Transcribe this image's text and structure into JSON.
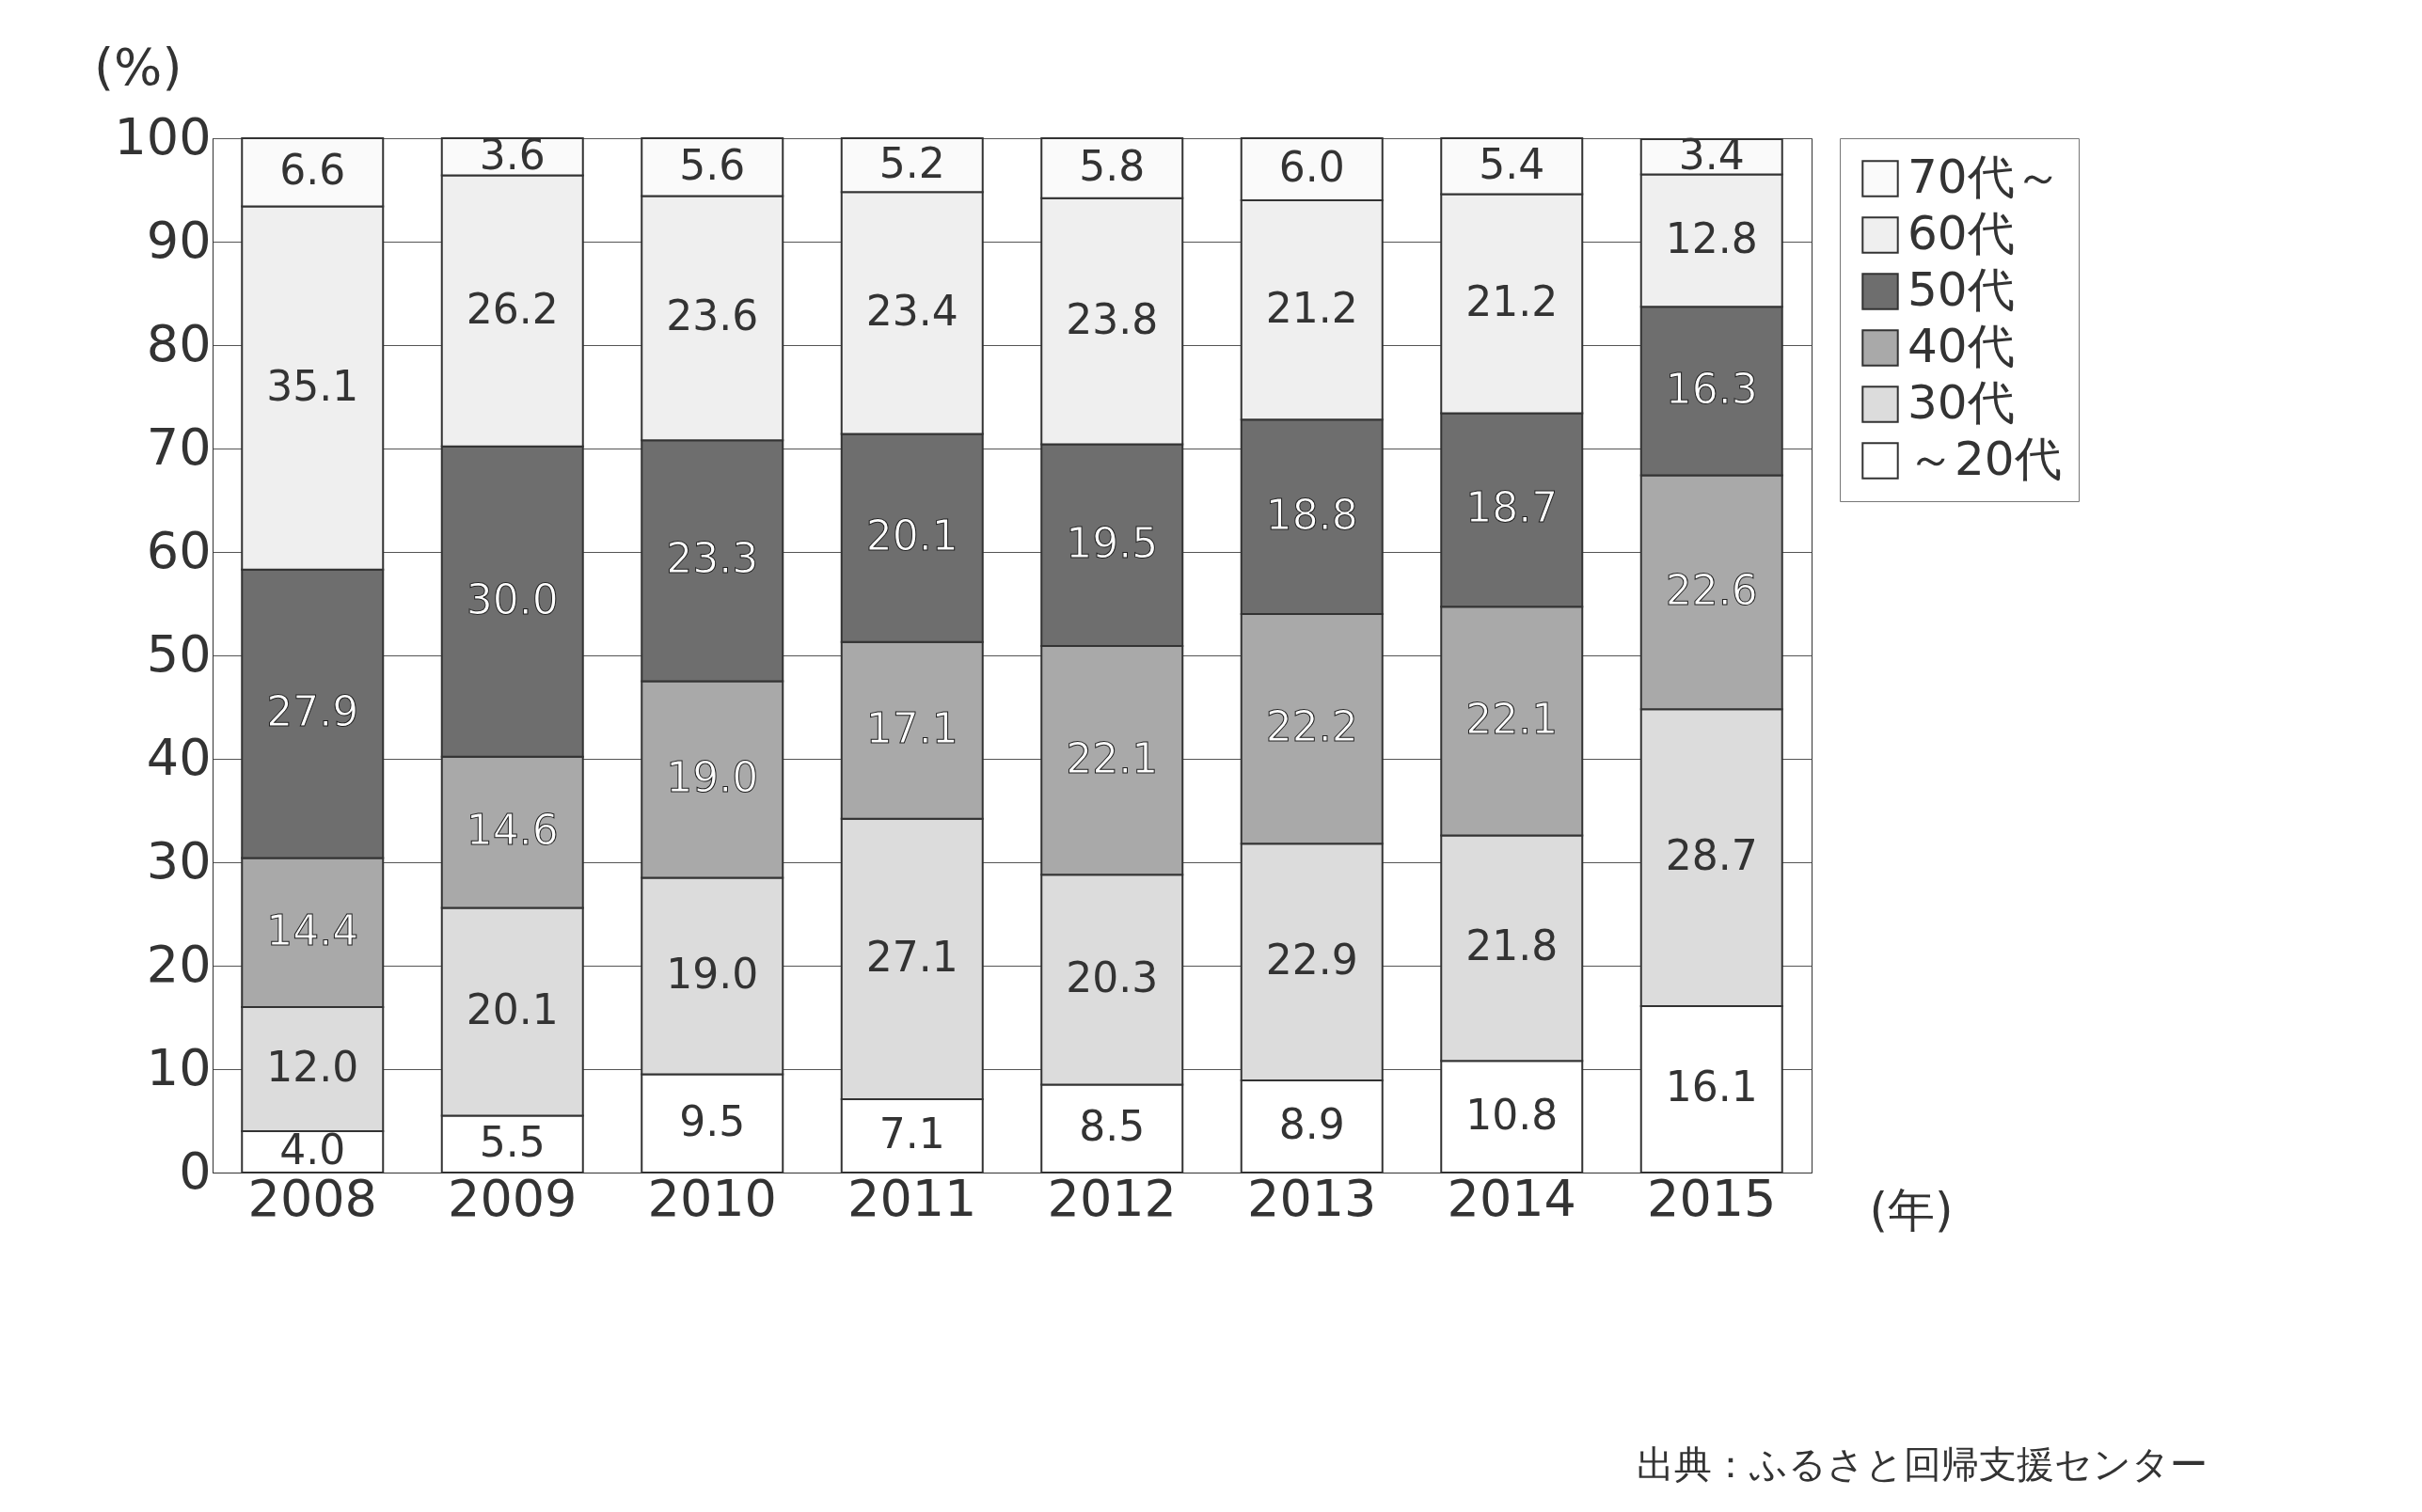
{
  "chart_data": {
    "type": "bar",
    "stacked": true,
    "ylabel": "(%)",
    "xlabel": "(年)",
    "categories": [
      "2008",
      "2009",
      "2010",
      "2011",
      "2012",
      "2013",
      "2014",
      "2015"
    ],
    "series": [
      {
        "name": "～20代",
        "color": "#ffffff",
        "values": [
          4.0,
          5.5,
          9.5,
          7.1,
          8.5,
          8.9,
          10.8,
          16.1
        ],
        "value_labels": [
          "4.0",
          "5.5",
          "9.5",
          "7.1",
          "8.5",
          "8.9",
          "10.8",
          "16.1"
        ]
      },
      {
        "name": "30代",
        "color": "#dcdcdc",
        "values": [
          12.0,
          20.1,
          19.0,
          27.1,
          20.3,
          22.9,
          21.8,
          28.7
        ],
        "value_labels": [
          "12.0",
          "20.1",
          "19.0",
          "27.1",
          "20.3",
          "22.9",
          "21.8",
          "28.7"
        ]
      },
      {
        "name": "40代",
        "color": "#a9a9a9",
        "values": [
          14.4,
          14.6,
          19.0,
          17.1,
          22.1,
          22.2,
          22.1,
          22.6
        ],
        "value_labels": [
          "14.4",
          "14.6",
          "19.0",
          "17.1",
          "22.1",
          "22.2",
          "22.1",
          "22.6"
        ]
      },
      {
        "name": "50代",
        "color": "#6e6e6e",
        "values": [
          27.9,
          30.0,
          23.3,
          20.1,
          19.5,
          18.8,
          18.7,
          16.3
        ],
        "value_labels": [
          "27.9",
          "30.0",
          "23.3",
          "20.1",
          "19.5",
          "18.8",
          "18.7",
          "16.3"
        ]
      },
      {
        "name": "60代",
        "color": "#efefef",
        "values": [
          35.1,
          26.2,
          23.6,
          23.4,
          23.8,
          21.2,
          21.2,
          12.8
        ],
        "value_labels": [
          "35.1",
          "26.2",
          "23.6",
          "23.4",
          "23.8",
          "21.2",
          "21.2",
          "12.8"
        ]
      },
      {
        "name": "70代～",
        "color": "#fafafa",
        "values": [
          6.6,
          3.6,
          5.6,
          5.2,
          5.8,
          6.0,
          5.4,
          3.4
        ],
        "value_labels": [
          "6.6",
          "3.6",
          "5.6",
          "5.2",
          "5.8",
          "6.0",
          "5.4",
          "3.4"
        ]
      }
    ],
    "ylim": [
      0,
      100
    ],
    "yticks": [
      0,
      10,
      20,
      30,
      40,
      50,
      60,
      70,
      80,
      90,
      100
    ],
    "grid": "y",
    "legend": "right",
    "annotations": [
      "出典：ふるさと回帰支援センター"
    ]
  }
}
